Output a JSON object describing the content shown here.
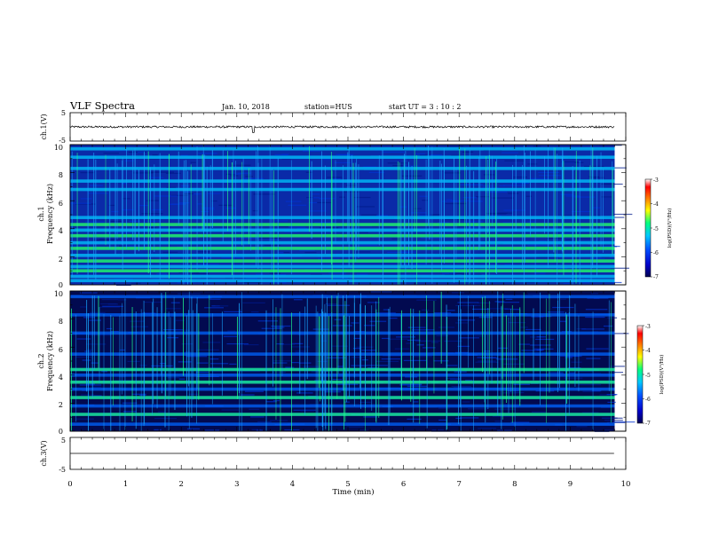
{
  "header": {
    "title": "VLF Spectra",
    "date": "Jan. 10, 2018",
    "station": "station=HUS",
    "start_time": "start  UT =   3 : 10 : 2"
  },
  "chart_data": [
    {
      "panel": "ch1-waveform",
      "type": "line",
      "ylabel": "ch.1(V)",
      "ylim": [
        -5,
        5
      ],
      "yticks": [
        "5",
        "-5"
      ],
      "xlim": [
        0,
        10
      ],
      "signal": {
        "mean": 0.0,
        "amplitude": 0.35,
        "end_min": 9.8,
        "spike_at_min": 3.3
      }
    },
    {
      "panel": "ch1-spectrogram",
      "type": "heatmap",
      "ylabel": "Frequency (kHz)",
      "channel_label": "ch.1",
      "ylim": [
        0,
        10
      ],
      "yticks": [
        "0",
        "2",
        "4",
        "6",
        "8",
        "10"
      ],
      "xlim": [
        0,
        9.8
      ],
      "bands_khz": [
        0.3,
        0.6,
        1.0,
        1.3,
        1.7,
        2.1,
        2.6,
        3.0,
        3.5,
        3.9,
        4.3,
        4.8,
        6.8,
        7.4,
        8.3,
        9.1,
        9.7
      ],
      "strong_bands_khz": [
        1.0,
        1.7,
        2.6,
        3.5,
        4.3
      ],
      "colorbar": {
        "label": "log(PSD)(V²/Hz)",
        "range": [
          -7,
          -3
        ],
        "ticks": [
          "-3",
          "-4",
          "-5",
          "-6",
          "-7"
        ]
      }
    },
    {
      "panel": "ch2-spectrogram",
      "type": "heatmap",
      "ylabel": "Frequency (kHz)",
      "channel_label": "ch.2",
      "ylim": [
        0,
        10
      ],
      "yticks": [
        "0",
        "2",
        "4",
        "6",
        "8",
        "10"
      ],
      "xlim": [
        0,
        9.8
      ],
      "bands_khz": [
        0.5,
        1.2,
        1.8,
        2.4,
        3.0,
        3.5,
        4.0,
        4.4,
        5.5,
        7.0,
        8.3,
        9.6
      ],
      "strong_bands_khz": [
        1.2,
        2.4,
        3.5,
        4.4
      ],
      "colorbar": {
        "label": "log(PSD)(V²/Hz)",
        "range": [
          -7,
          -3
        ],
        "ticks": [
          "-3",
          "-4",
          "-5",
          "-6",
          "-7"
        ]
      }
    },
    {
      "panel": "ch3-waveform",
      "type": "line",
      "ylabel": "ch.3(V)",
      "ylim": [
        -5,
        5
      ],
      "yticks": [
        "5",
        "-5"
      ],
      "xlim": [
        0,
        10
      ],
      "signal": {
        "mean": 0.0,
        "amplitude": 0.0,
        "end_min": 9.8
      }
    }
  ],
  "xaxis": {
    "label": "Time (min)",
    "ticks": [
      "0",
      "1",
      "2",
      "3",
      "4",
      "5",
      "6",
      "7",
      "8",
      "9",
      "10"
    ],
    "range": [
      0,
      10
    ]
  },
  "colors": {
    "colormap": [
      "#000050",
      "#0000c8",
      "#0050ff",
      "#00c8ff",
      "#00ff80",
      "#ffff00",
      "#ff8000",
      "#ff0000",
      "#ffffff"
    ]
  }
}
